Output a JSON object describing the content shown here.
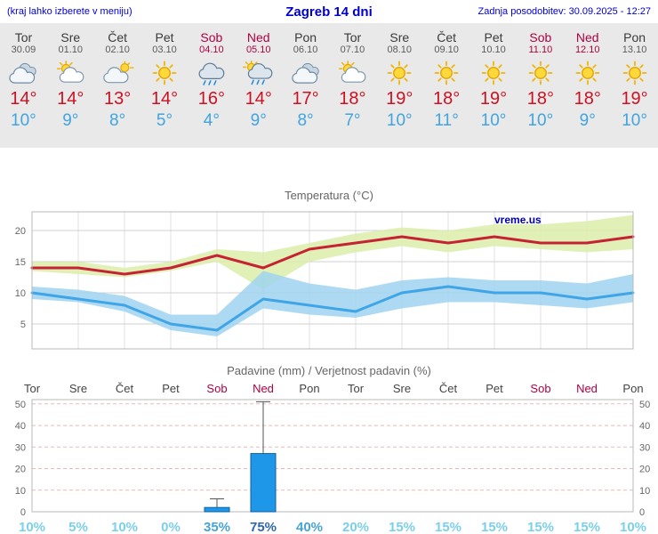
{
  "header": {
    "note": "(kraj lahko izberete v meniju)",
    "title": "Zagreb 14 dni",
    "updated": "Zadnja posodobitev: 30.09.2025 - 12:27"
  },
  "days": [
    {
      "name": "Tor",
      "date": "30.09",
      "weekend": false,
      "icon": "cloudy",
      "tmax": "14°",
      "tmin": "10°"
    },
    {
      "name": "Sre",
      "date": "01.10",
      "weekend": false,
      "icon": "partly",
      "tmax": "14°",
      "tmin": "9°"
    },
    {
      "name": "Čet",
      "date": "02.10",
      "weekend": false,
      "icon": "cloud-sun",
      "tmax": "13°",
      "tmin": "8°"
    },
    {
      "name": "Pet",
      "date": "03.10",
      "weekend": false,
      "icon": "sun",
      "tmax": "14°",
      "tmin": "5°"
    },
    {
      "name": "Sob",
      "date": "04.10",
      "weekend": true,
      "icon": "rain",
      "tmax": "16°",
      "tmin": "4°"
    },
    {
      "name": "Ned",
      "date": "05.10",
      "weekend": true,
      "icon": "rain-sun",
      "tmax": "14°",
      "tmin": "9°"
    },
    {
      "name": "Pon",
      "date": "06.10",
      "weekend": false,
      "icon": "cloudy",
      "tmax": "17°",
      "tmin": "8°"
    },
    {
      "name": "Tor",
      "date": "07.10",
      "weekend": false,
      "icon": "partly",
      "tmax": "18°",
      "tmin": "7°"
    },
    {
      "name": "Sre",
      "date": "08.10",
      "weekend": false,
      "icon": "sun",
      "tmax": "19°",
      "tmin": "10°"
    },
    {
      "name": "Čet",
      "date": "09.10",
      "weekend": false,
      "icon": "sun",
      "tmax": "18°",
      "tmin": "11°"
    },
    {
      "name": "Pet",
      "date": "10.10",
      "weekend": false,
      "icon": "sun",
      "tmax": "19°",
      "tmin": "10°"
    },
    {
      "name": "Sob",
      "date": "11.10",
      "weekend": true,
      "icon": "sun",
      "tmax": "18°",
      "tmin": "10°"
    },
    {
      "name": "Ned",
      "date": "12.10",
      "weekend": true,
      "icon": "sun",
      "tmax": "18°",
      "tmin": "9°"
    },
    {
      "name": "Pon",
      "date": "13.10",
      "weekend": false,
      "icon": "sun",
      "tmax": "19°",
      "tmin": "10°"
    }
  ],
  "chart_data": [
    {
      "type": "line",
      "title": "Temperatura (°C)",
      "watermark": "vreme.us",
      "x_labels": [
        "Tor",
        "Sre",
        "Čet",
        "Pet",
        "Sob",
        "Ned",
        "Pon",
        "Tor",
        "Sre",
        "Čet",
        "Pet",
        "Sob",
        "Ned",
        "Pon"
      ],
      "ylim": [
        1,
        23
      ],
      "yticks": [
        5,
        10,
        15,
        20
      ],
      "grid": true,
      "legend": "none",
      "series": [
        {
          "name": "max-temperature",
          "color": "#c52233",
          "values": [
            14,
            14,
            13,
            14,
            16,
            14,
            17,
            18,
            19,
            18,
            19,
            18,
            18,
            19
          ]
        },
        {
          "name": "min-temperature",
          "color": "#3fa5e6",
          "values": [
            10,
            9,
            8,
            5,
            4,
            9,
            8,
            7,
            10,
            11,
            10,
            10,
            9,
            10
          ]
        }
      ],
      "bands": [
        {
          "name": "max-temperature-range",
          "color": "#dcedaa",
          "hi": [
            15,
            15,
            14,
            15,
            17,
            16.5,
            18,
            19.5,
            20.5,
            20,
            21,
            21,
            21.5,
            22.5
          ],
          "lo": [
            13.5,
            13,
            12.5,
            13.5,
            15,
            10.5,
            15,
            16.5,
            17.5,
            16.5,
            17.5,
            17,
            16.5,
            17
          ]
        },
        {
          "name": "min-temperature-range",
          "color": "#9fd4f0",
          "hi": [
            11,
            10.5,
            9.5,
            6.5,
            6.5,
            13.5,
            11.5,
            10.5,
            12,
            12.5,
            12,
            12,
            11.5,
            13
          ],
          "lo": [
            9,
            8.5,
            7,
            4,
            3,
            7.5,
            6.5,
            6,
            7.5,
            8.5,
            8.5,
            8,
            7.5,
            8.5
          ]
        }
      ]
    },
    {
      "type": "bar",
      "title": "Padavine (mm) / Verjetnost padavin (%)",
      "categories": [
        "Tor",
        "Sre",
        "Čet",
        "Pet",
        "Sob",
        "Ned",
        "Pon",
        "Tor",
        "Sre",
        "Čet",
        "Pet",
        "Sob",
        "Ned",
        "Pon"
      ],
      "weekend": [
        false,
        false,
        false,
        false,
        true,
        true,
        false,
        false,
        false,
        false,
        false,
        true,
        true,
        false
      ],
      "ylim": [
        0,
        52
      ],
      "yticks": [
        0,
        10,
        20,
        30,
        40,
        50
      ],
      "values_mm": [
        0,
        0,
        0,
        0,
        2,
        27,
        0,
        0,
        0,
        0,
        0,
        0,
        0,
        0
      ],
      "whisker_max_mm": [
        0,
        0,
        0,
        0,
        6,
        51,
        0,
        0,
        0,
        0,
        0,
        0,
        0,
        0
      ],
      "probabilities": [
        "10%",
        "5%",
        "10%",
        "0%",
        "35%",
        "75%",
        "40%",
        "20%",
        "15%",
        "15%",
        "15%",
        "15%",
        "15%",
        "10%"
      ],
      "bar_color": "#1f97e8",
      "bar_border": "#0e5fa0"
    }
  ],
  "colors": {
    "header_blue": "#0000cc",
    "weekend_red": "#b00040",
    "tmax_red": "#cc1122",
    "tmin_blue": "#41a4e0",
    "strip_bg": "#e9e9e9",
    "prob_high": "#2e66b0",
    "prob_mid": "#46a4d6",
    "prob_low": "#7ad0ea",
    "bottom_bar": "#2f9fc4"
  }
}
